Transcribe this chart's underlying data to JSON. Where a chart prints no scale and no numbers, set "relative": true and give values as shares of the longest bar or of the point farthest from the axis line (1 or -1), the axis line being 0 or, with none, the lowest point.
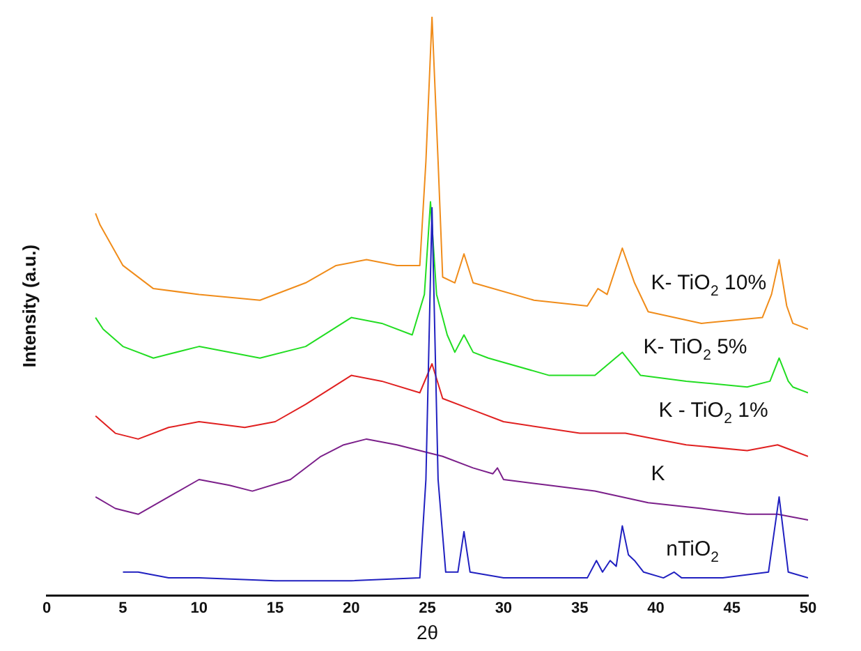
{
  "chart_data": {
    "type": "line",
    "xlabel": "2θ",
    "ylabel": "Intensity (a.u.)",
    "relative": true,
    "xlim": [
      0,
      50
    ],
    "xticks": [
      0,
      5,
      10,
      15,
      20,
      25,
      30,
      35,
      40,
      45,
      50
    ],
    "grid": false,
    "legend": false,
    "marker": "none",
    "line_style": "solid",
    "series": [
      {
        "name": "nTiO$_{2}$",
        "color": "#2020c0",
        "x": [
          5,
          6,
          8,
          10,
          15,
          20,
          24.5,
          24.9,
          25.3,
          25.7,
          26.2,
          27,
          27.4,
          27.8,
          30,
          35.5,
          36.1,
          36.5,
          37,
          37.4,
          37.8,
          38.2,
          38.6,
          39.2,
          40.5,
          41.2,
          41.7,
          43.5,
          43.9,
          44.4,
          47.4,
          48.1,
          48.7,
          50
        ],
        "values": [
          0.04,
          0.04,
          0.03,
          0.03,
          0.025,
          0.025,
          0.03,
          0.2,
          0.67,
          0.2,
          0.04,
          0.04,
          0.11,
          0.04,
          0.03,
          0.03,
          0.06,
          0.04,
          0.06,
          0.05,
          0.12,
          0.07,
          0.06,
          0.04,
          0.03,
          0.04,
          0.03,
          0.03,
          0.03,
          0.03,
          0.04,
          0.17,
          0.04,
          0.03
        ]
      },
      {
        "name": "K",
        "color": "#7b1f8a",
        "x": [
          3.2,
          4.5,
          6,
          8,
          10,
          12,
          13.5,
          16,
          18,
          19.5,
          21,
          23,
          24.5,
          26,
          28,
          29.3,
          29.6,
          30,
          33,
          36,
          39.5,
          43,
          46,
          48,
          50
        ],
        "values": [
          0.17,
          0.15,
          0.14,
          0.17,
          0.2,
          0.19,
          0.18,
          0.2,
          0.24,
          0.26,
          0.27,
          0.26,
          0.25,
          0.24,
          0.22,
          0.21,
          0.22,
          0.2,
          0.19,
          0.18,
          0.16,
          0.15,
          0.14,
          0.14,
          0.13
        ]
      },
      {
        "name": "K - TiO$_{2}$ 1%",
        "color": "#e02020",
        "x": [
          3.2,
          4.5,
          6,
          8,
          10,
          13,
          15,
          17,
          20,
          22,
          24.5,
          25.3,
          26,
          28,
          30,
          35,
          38,
          40,
          42,
          46,
          48,
          49,
          50
        ],
        "values": [
          0.31,
          0.28,
          0.27,
          0.29,
          0.3,
          0.29,
          0.3,
          0.33,
          0.38,
          0.37,
          0.35,
          0.4,
          0.34,
          0.32,
          0.3,
          0.28,
          0.28,
          0.27,
          0.26,
          0.25,
          0.26,
          0.25,
          0.24
        ]
      },
      {
        "name": "K- TiO$_{2}$ 5%",
        "color": "#22dd22",
        "x": [
          3.2,
          3.7,
          5,
          7,
          10,
          14,
          17,
          20,
          22,
          24,
          24.8,
          25.2,
          25.6,
          26.3,
          26.8,
          27.4,
          28,
          29,
          33,
          36,
          37.8,
          39,
          42,
          46,
          47.5,
          48.1,
          48.7,
          49,
          50
        ],
        "values": [
          0.48,
          0.46,
          0.43,
          0.41,
          0.43,
          0.41,
          0.43,
          0.48,
          0.47,
          0.45,
          0.52,
          0.68,
          0.52,
          0.45,
          0.42,
          0.45,
          0.42,
          0.41,
          0.38,
          0.38,
          0.42,
          0.38,
          0.37,
          0.36,
          0.37,
          0.41,
          0.37,
          0.36,
          0.35
        ]
      },
      {
        "name": "K- TiO$_{2}$ 10%",
        "color": "#f08c1a",
        "x": [
          3.2,
          3.5,
          5,
          7,
          10,
          14,
          17,
          19,
          21,
          23,
          24.5,
          24.9,
          25.3,
          25.7,
          26,
          26.8,
          27.4,
          28,
          32,
          35.5,
          36.2,
          36.8,
          37.8,
          38.6,
          39.5,
          43,
          47,
          47.6,
          48.1,
          48.6,
          49,
          50
        ],
        "values": [
          0.66,
          0.64,
          0.57,
          0.53,
          0.52,
          0.51,
          0.54,
          0.57,
          0.58,
          0.57,
          0.57,
          0.75,
          1,
          0.75,
          0.55,
          0.54,
          0.59,
          0.54,
          0.51,
          0.5,
          0.53,
          0.52,
          0.6,
          0.54,
          0.49,
          0.47,
          0.48,
          0.52,
          0.58,
          0.5,
          0.47,
          0.46
        ]
      }
    ]
  }
}
